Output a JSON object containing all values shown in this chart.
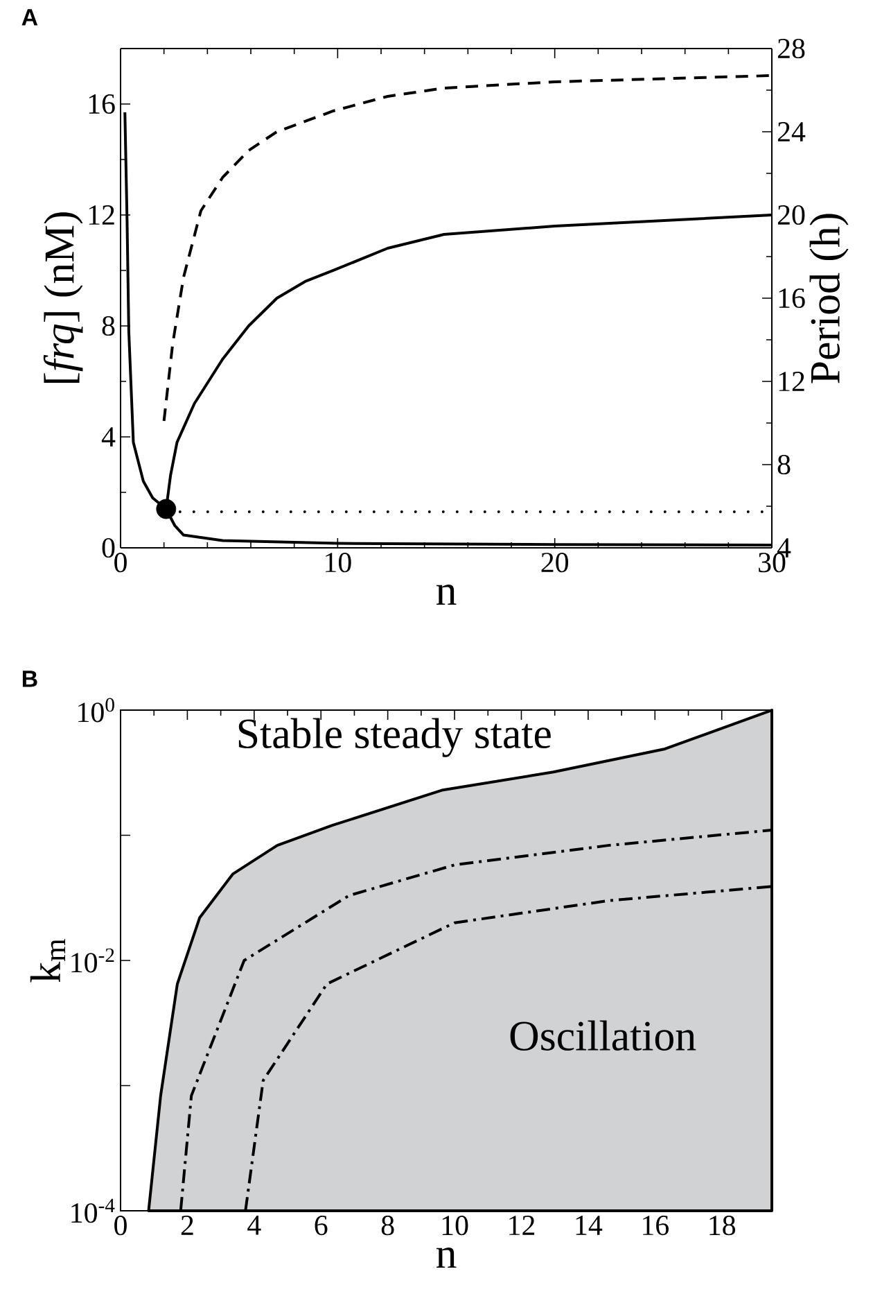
{
  "chart_data": [
    {
      "type": "line",
      "title": "A",
      "xlabel": "n",
      "ylabel": "[*frq*] (nM)",
      "y2label": "Period (h)",
      "xlim": [
        0,
        30
      ],
      "xticks": [
        0,
        10,
        20,
        30
      ],
      "ylim": [
        0,
        18
      ],
      "yticks": [
        0,
        4,
        8,
        12,
        16
      ],
      "y2lim": [
        4,
        28
      ],
      "y2ticks": [
        4,
        8,
        12,
        16,
        20,
        24,
        28
      ],
      "series": [
        {
          "color": "#000000",
          "line_style": "solid",
          "x": [
            0.2,
            0.3,
            0.38,
            0.59,
            1.05,
            1.48,
            2.1,
            2.5,
            2.9,
            4.7,
            10,
            20,
            30
          ],
          "values": [
            15.7,
            11.8,
            7.8,
            3.8,
            2.4,
            1.8,
            1.4,
            0.8,
            0.46,
            0.26,
            0.16,
            0.12,
            0.1
          ]
        },
        {
          "color": "#000000",
          "line_style": "dotted",
          "x": [
            2.1,
            30
          ],
          "values": [
            1.3,
            1.3
          ]
        },
        {
          "color": "#000000",
          "line_style": "solid",
          "x": [
            2.1,
            2.3,
            2.6,
            3.4,
            4.7,
            5.9,
            7.2,
            8.5,
            9.8,
            12.3,
            14.9,
            20,
            30
          ],
          "values": [
            1.4,
            2.6,
            3.8,
            5.2,
            6.8,
            8.0,
            9.0,
            9.6,
            10.0,
            10.8,
            11.3,
            11.6,
            12.0
          ]
        },
        {
          "color": "#000000",
          "line_style": "dashed",
          "axis": "y2",
          "x": [
            2.0,
            2.4,
            2.9,
            3.7,
            4.7,
            5.9,
            7.2,
            9.8,
            12.3,
            14.9,
            20,
            30
          ],
          "values": [
            10.1,
            13.8,
            17.0,
            20.2,
            21.8,
            23.1,
            24.0,
            25.0,
            25.7,
            26.1,
            26.4,
            26.7
          ]
        },
        {
          "type": "scatter",
          "color": "#000000",
          "marker": "circle",
          "x": [
            2.1
          ],
          "values": [
            1.4
          ]
        }
      ]
    },
    {
      "type": "line",
      "title": "B",
      "xlabel": "n",
      "ylabel": "k$_{m}$",
      "log": "y",
      "xlim": [
        0,
        19.5
      ],
      "xticks": [
        0,
        2,
        4,
        6,
        8,
        10,
        12,
        14,
        16,
        18
      ],
      "ylim": [
        0.0001,
        1
      ],
      "yticks": [
        {
          "value": 0.0001,
          "label": "10$^{-4}$"
        },
        {
          "value": 0.001,
          "label": null
        },
        {
          "value": 0.01,
          "label": "10$^{-2}$"
        },
        {
          "value": 0.1,
          "label": null
        },
        {
          "value": 1,
          "label": "10$^{0}$"
        }
      ],
      "annotations": [
        "Stable steady state",
        "Oscillation"
      ],
      "series": [
        {
          "type": "area",
          "color": "#d1d2d4",
          "line_style": "solid",
          "x": [
            0.84,
            1.2,
            1.7,
            2.37,
            3.36,
            4.69,
            6.34,
            9.65,
            12.96,
            16.3,
            19.5
          ],
          "values": [
            0.0001,
            0.00083,
            0.0065,
            0.022,
            0.049,
            0.083,
            0.12,
            0.23,
            0.32,
            0.49,
            1
          ]
        },
        {
          "color": "#000000",
          "line_style": "dashdot",
          "x": [
            1.8,
            2.12,
            3.7,
            6.84,
            10,
            14.6,
            19.5
          ],
          "values": [
            0.0001,
            0.00083,
            0.01,
            0.033,
            0.058,
            0.083,
            0.11
          ]
        },
        {
          "color": "#000000",
          "line_style": "dashdot",
          "x": [
            3.74,
            4.27,
            6.18,
            10,
            14.6,
            19.5
          ],
          "values": [
            0.0001,
            0.0011,
            0.0065,
            0.02,
            0.03,
            0.039
          ]
        }
      ]
    }
  ]
}
